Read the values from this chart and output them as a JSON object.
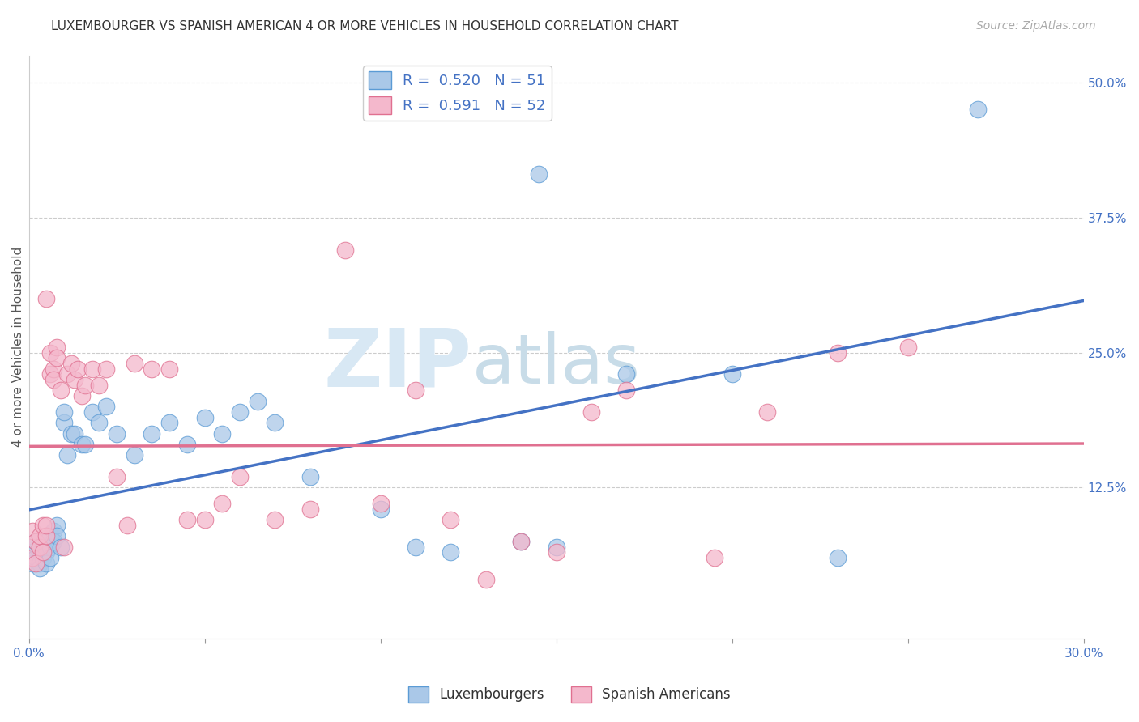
{
  "title": "LUXEMBOURGER VS SPANISH AMERICAN 4 OR MORE VEHICLES IN HOUSEHOLD CORRELATION CHART",
  "source": "Source: ZipAtlas.com",
  "ylabel": "4 or more Vehicles in Household",
  "xlim": [
    0.0,
    0.3
  ],
  "ylim": [
    -0.015,
    0.525
  ],
  "xticks": [
    0.0,
    0.05,
    0.1,
    0.15,
    0.2,
    0.25,
    0.3
  ],
  "yticks_right": [
    0.125,
    0.25,
    0.375,
    0.5
  ],
  "yticklabels_right": [
    "12.5%",
    "25.0%",
    "37.5%",
    "50.0%"
  ],
  "lux_color": "#aac8e8",
  "lux_edge": "#5b9bd5",
  "lux_line": "#4472c4",
  "spa_color": "#f4b8cc",
  "spa_edge": "#e07090",
  "spa_line": "#e07090",
  "lux_r": 0.52,
  "lux_n": 51,
  "spa_r": 0.591,
  "spa_n": 52,
  "lux_x": [
    0.001,
    0.001,
    0.002,
    0.002,
    0.003,
    0.003,
    0.003,
    0.004,
    0.004,
    0.005,
    0.005,
    0.005,
    0.006,
    0.006,
    0.006,
    0.007,
    0.007,
    0.008,
    0.008,
    0.009,
    0.01,
    0.01,
    0.011,
    0.012,
    0.013,
    0.015,
    0.016,
    0.018,
    0.02,
    0.022,
    0.025,
    0.03,
    0.035,
    0.04,
    0.045,
    0.05,
    0.055,
    0.06,
    0.065,
    0.07,
    0.08,
    0.1,
    0.11,
    0.12,
    0.14,
    0.145,
    0.15,
    0.17,
    0.2,
    0.23,
    0.27
  ],
  "lux_y": [
    0.065,
    0.055,
    0.075,
    0.06,
    0.065,
    0.055,
    0.05,
    0.07,
    0.06,
    0.075,
    0.065,
    0.055,
    0.08,
    0.07,
    0.06,
    0.085,
    0.075,
    0.09,
    0.08,
    0.07,
    0.185,
    0.195,
    0.155,
    0.175,
    0.175,
    0.165,
    0.165,
    0.195,
    0.185,
    0.2,
    0.175,
    0.155,
    0.175,
    0.185,
    0.165,
    0.19,
    0.175,
    0.195,
    0.205,
    0.185,
    0.135,
    0.105,
    0.07,
    0.065,
    0.075,
    0.415,
    0.07,
    0.23,
    0.23,
    0.06,
    0.475
  ],
  "spa_x": [
    0.001,
    0.001,
    0.002,
    0.002,
    0.003,
    0.003,
    0.004,
    0.004,
    0.005,
    0.005,
    0.005,
    0.006,
    0.006,
    0.007,
    0.007,
    0.008,
    0.008,
    0.009,
    0.01,
    0.011,
    0.012,
    0.013,
    0.014,
    0.015,
    0.016,
    0.018,
    0.02,
    0.022,
    0.025,
    0.028,
    0.03,
    0.035,
    0.04,
    0.045,
    0.05,
    0.055,
    0.06,
    0.07,
    0.08,
    0.09,
    0.1,
    0.11,
    0.12,
    0.13,
    0.14,
    0.15,
    0.16,
    0.17,
    0.195,
    0.21,
    0.23,
    0.25
  ],
  "spa_y": [
    0.085,
    0.06,
    0.075,
    0.055,
    0.07,
    0.08,
    0.09,
    0.065,
    0.3,
    0.08,
    0.09,
    0.23,
    0.25,
    0.235,
    0.225,
    0.255,
    0.245,
    0.215,
    0.07,
    0.23,
    0.24,
    0.225,
    0.235,
    0.21,
    0.22,
    0.235,
    0.22,
    0.235,
    0.135,
    0.09,
    0.24,
    0.235,
    0.235,
    0.095,
    0.095,
    0.11,
    0.135,
    0.095,
    0.105,
    0.345,
    0.11,
    0.215,
    0.095,
    0.04,
    0.075,
    0.065,
    0.195,
    0.215,
    0.06,
    0.195,
    0.25,
    0.255
  ],
  "watermark_zip": "ZIP",
  "watermark_atlas": "atlas",
  "background_color": "#ffffff",
  "grid_color": "#cccccc",
  "title_fontsize": 11,
  "axis_label_fontsize": 11,
  "tick_fontsize": 11,
  "legend_fontsize": 13,
  "source_fontsize": 10
}
